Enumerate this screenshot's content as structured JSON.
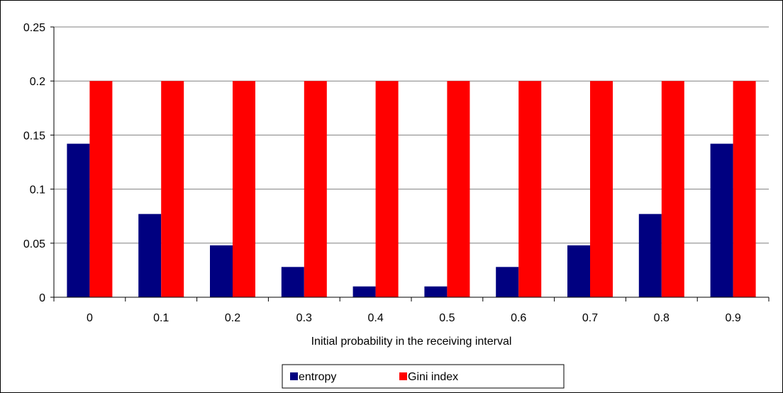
{
  "chart_data": {
    "type": "bar",
    "title": "",
    "xlabel": "Initial probability in the receiving interval",
    "ylabel": "",
    "categories": [
      "0",
      "0.1",
      "0.2",
      "0.3",
      "0.4",
      "0.5",
      "0.6",
      "0.7",
      "0.8",
      "0.9"
    ],
    "series": [
      {
        "name": "entropy",
        "color": "#000080",
        "values": [
          0.142,
          0.077,
          0.048,
          0.028,
          0.01,
          0.01,
          0.028,
          0.048,
          0.077,
          0.142
        ]
      },
      {
        "name": "Gini index",
        "color": "#ff0000",
        "values": [
          0.2,
          0.2,
          0.2,
          0.2,
          0.2,
          0.2,
          0.2,
          0.2,
          0.2,
          0.2
        ]
      }
    ],
    "ylim": [
      0,
      0.25
    ],
    "yticks": [
      "0",
      "0.05",
      "0.1",
      "0.15",
      "0.2",
      "0.25"
    ],
    "grid": true,
    "legend_position": "bottom"
  }
}
